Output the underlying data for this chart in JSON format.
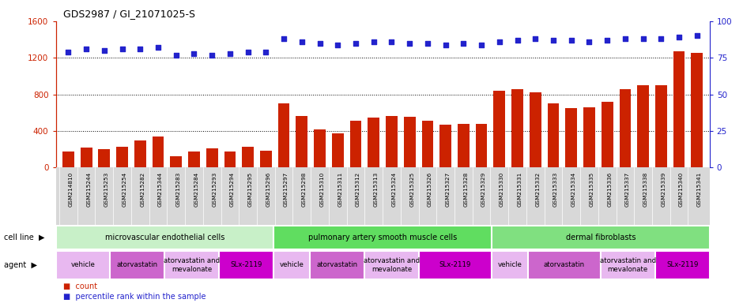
{
  "title": "GDS2987 / GI_21071025-S",
  "samples": [
    "GSM214810",
    "GSM215244",
    "GSM215253",
    "GSM215254",
    "GSM215282",
    "GSM215344",
    "GSM215283",
    "GSM215284",
    "GSM215293",
    "GSM215294",
    "GSM215295",
    "GSM215296",
    "GSM215297",
    "GSM215298",
    "GSM215310",
    "GSM215311",
    "GSM215312",
    "GSM215313",
    "GSM215324",
    "GSM215325",
    "GSM215326",
    "GSM215327",
    "GSM215328",
    "GSM215329",
    "GSM215330",
    "GSM215331",
    "GSM215332",
    "GSM215333",
    "GSM215334",
    "GSM215335",
    "GSM215336",
    "GSM215337",
    "GSM215338",
    "GSM215339",
    "GSM215340",
    "GSM215341"
  ],
  "counts": [
    175,
    220,
    205,
    225,
    300,
    340,
    120,
    175,
    210,
    175,
    230,
    185,
    700,
    560,
    420,
    375,
    510,
    545,
    560,
    555,
    510,
    470,
    480,
    480,
    840,
    860,
    820,
    700,
    650,
    660,
    720,
    860,
    900,
    900,
    1270,
    1250
  ],
  "percentile_ranks": [
    79,
    81,
    80,
    81,
    81,
    82,
    77,
    78,
    77,
    78,
    79,
    79,
    88,
    86,
    85,
    84,
    85,
    86,
    86,
    85,
    85,
    84,
    85,
    84,
    86,
    87,
    88,
    87,
    87,
    86,
    87,
    88,
    88,
    88,
    89,
    90
  ],
  "cell_line_groups": [
    {
      "label": "microvascular endothelial cells",
      "start": 0,
      "end": 12,
      "color": "#c8f0c8"
    },
    {
      "label": "pulmonary artery smooth muscle cells",
      "start": 12,
      "end": 24,
      "color": "#60dd60"
    },
    {
      "label": "dermal fibroblasts",
      "start": 24,
      "end": 36,
      "color": "#80e080"
    }
  ],
  "agent_groups": [
    {
      "label": "vehicle",
      "start": 0,
      "end": 3,
      "color": "#e8b8f0"
    },
    {
      "label": "atorvastatin",
      "start": 3,
      "end": 6,
      "color": "#cc66cc"
    },
    {
      "label": "atorvastatin and\nmevalonate",
      "start": 6,
      "end": 9,
      "color": "#e8b8f0"
    },
    {
      "label": "SLx-2119",
      "start": 9,
      "end": 12,
      "color": "#cc00cc"
    },
    {
      "label": "vehicle",
      "start": 12,
      "end": 14,
      "color": "#e8b8f0"
    },
    {
      "label": "atorvastatin",
      "start": 14,
      "end": 17,
      "color": "#cc66cc"
    },
    {
      "label": "atorvastatin and\nmevalonate",
      "start": 17,
      "end": 20,
      "color": "#e8b8f0"
    },
    {
      "label": "SLx-2119",
      "start": 20,
      "end": 24,
      "color": "#cc00cc"
    },
    {
      "label": "vehicle",
      "start": 24,
      "end": 26,
      "color": "#e8b8f0"
    },
    {
      "label": "atorvastatin",
      "start": 26,
      "end": 30,
      "color": "#cc66cc"
    },
    {
      "label": "atorvastatin and\nmevalonate",
      "start": 30,
      "end": 33,
      "color": "#e8b8f0"
    },
    {
      "label": "SLx-2119",
      "start": 33,
      "end": 36,
      "color": "#cc00cc"
    }
  ],
  "bar_color": "#cc2200",
  "dot_color": "#2222cc",
  "ylim_left": [
    0,
    1600
  ],
  "ylim_right": [
    0,
    100
  ],
  "yticks_left": [
    0,
    400,
    800,
    1200,
    1600
  ],
  "yticks_right": [
    0,
    25,
    50,
    75,
    100
  ],
  "grid_lines": [
    400,
    800,
    1200
  ],
  "xtick_bg_color": "#d8d8d8"
}
